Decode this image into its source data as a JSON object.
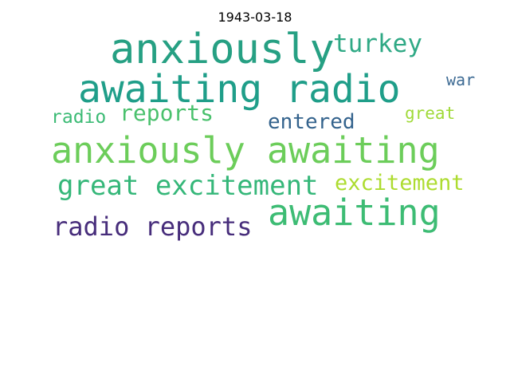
{
  "title": "1943-03-18",
  "words": [
    {
      "text": "anxiously",
      "color": "#26a083"
    },
    {
      "text": "turkey",
      "color": "#2fa985"
    },
    {
      "text": "awaiting radio",
      "color": "#1f9e89"
    },
    {
      "text": "war",
      "color": "#3e6b94"
    },
    {
      "text": "radio",
      "color": "#3cbb75"
    },
    {
      "text": "reports",
      "color": "#4ac16d"
    },
    {
      "text": "entered",
      "color": "#34638d"
    },
    {
      "text": "great",
      "color": "#a0da39"
    },
    {
      "text": "anxiously awaiting",
      "color": "#6ccd5a"
    },
    {
      "text": "great excitement",
      "color": "#35b779"
    },
    {
      "text": "excitement",
      "color": "#addc30"
    },
    {
      "text": "awaiting",
      "color": "#3dbc74"
    },
    {
      "text": "radio reports",
      "color": "#472d7b"
    }
  ]
}
